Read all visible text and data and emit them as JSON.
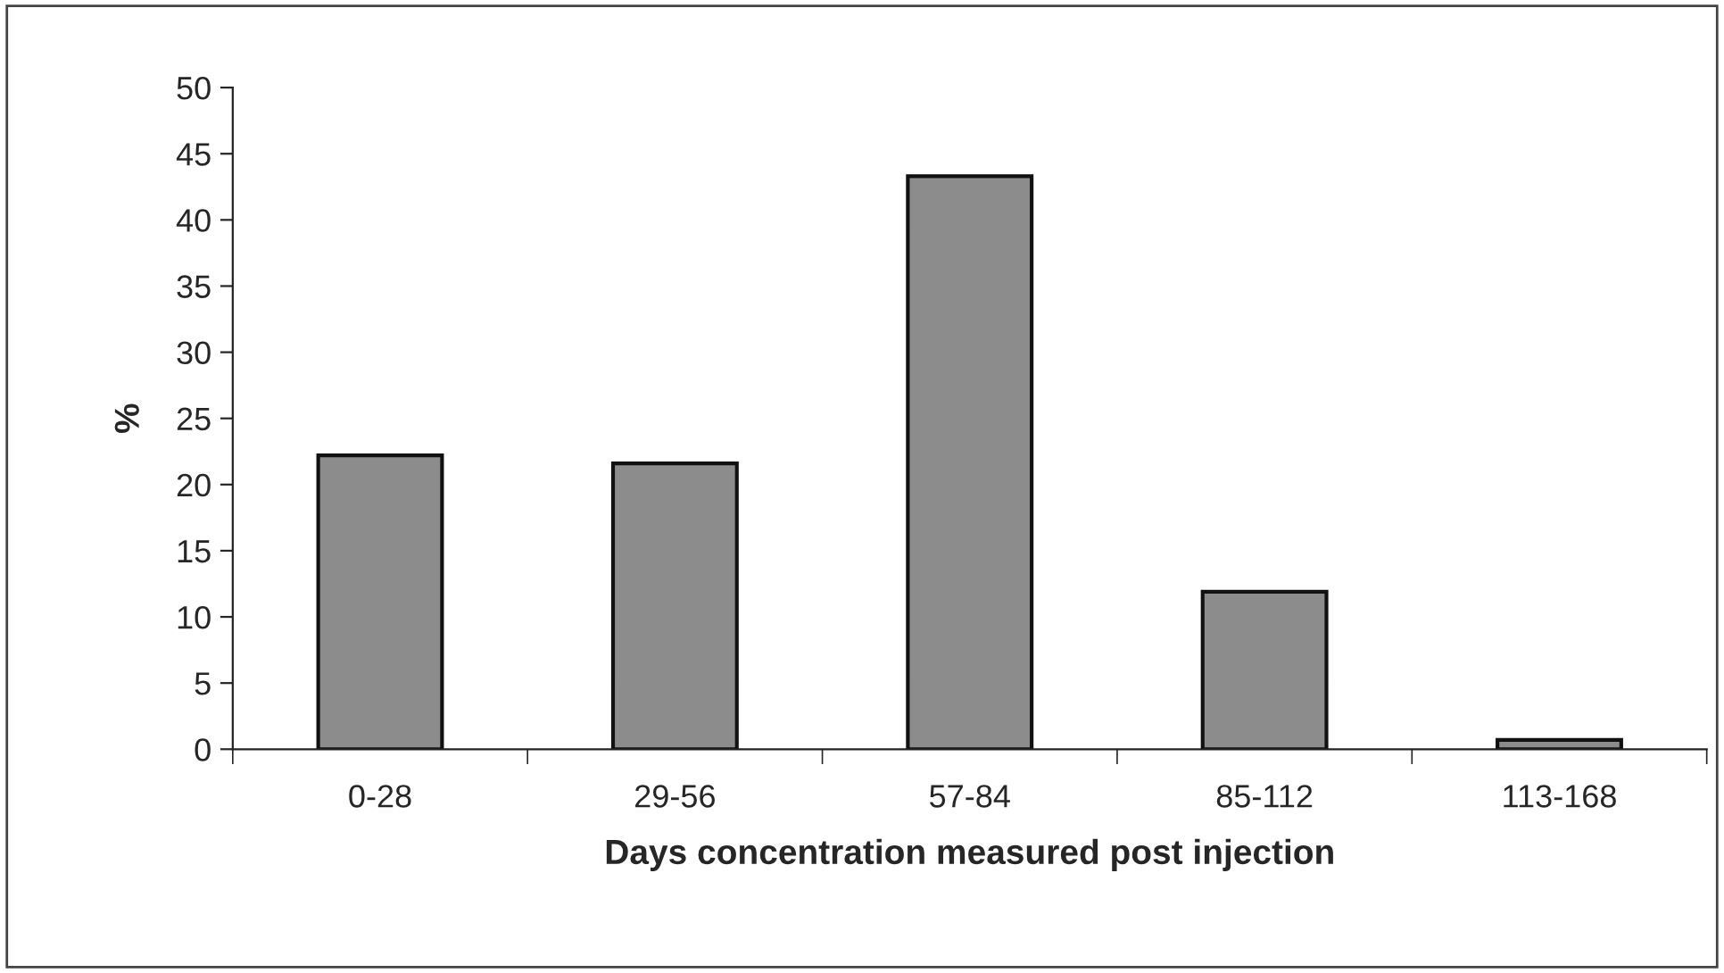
{
  "chart_data": {
    "type": "bar",
    "xlabel": "Days concentration measured post injection",
    "ylabel": "%",
    "categories": [
      "0-28",
      "29-56",
      "57-84",
      "85-112",
      "113-168"
    ],
    "values": [
      22.2,
      21.6,
      43.3,
      11.9,
      0.7
    ],
    "color": "#8c8c8c",
    "ylim": [
      0,
      50
    ],
    "yticks": [
      0,
      5,
      10,
      15,
      20,
      25,
      30,
      35,
      40,
      45,
      50
    ],
    "grid": false
  }
}
